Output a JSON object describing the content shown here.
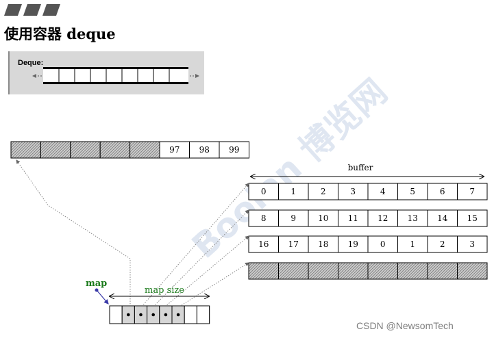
{
  "heading": {
    "title": "使用容器 deque"
  },
  "deque_figure": {
    "label": "Deque:"
  },
  "top_block": {
    "values": [
      "97",
      "98",
      "99"
    ],
    "hatched_cells": 5
  },
  "buffer": {
    "label": "buffer",
    "rows": [
      [
        "0",
        "1",
        "2",
        "3",
        "4",
        "5",
        "6",
        "7"
      ],
      [
        "8",
        "9",
        "10",
        "11",
        "12",
        "13",
        "14",
        "15"
      ],
      [
        "16",
        "17",
        "18",
        "19",
        "0",
        "1",
        "2",
        "3"
      ]
    ],
    "hatched_rows": 1
  },
  "map": {
    "label": "map",
    "size_label": "map  size",
    "slots": 8,
    "dot_slots": [
      1,
      2,
      3,
      4,
      5
    ]
  },
  "watermark": {
    "text": "CSDN @NewsomTech",
    "stamp_text": "Boolan 博览网"
  },
  "colors": {
    "map_label": "#1a7a1a",
    "map_arrow": "#3a3aa8",
    "stamp": "#c5d3e6",
    "hatch": "#7a7a7a"
  }
}
